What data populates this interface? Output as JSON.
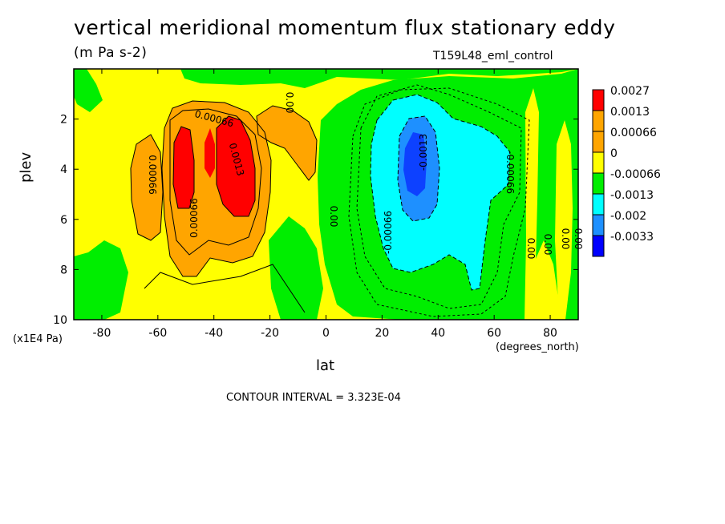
{
  "title": "vertical meridional momentum flux stationary eddy",
  "units": "(m Pa s-2)",
  "run_label": "T159L48_eml_control",
  "contour_interval": "CONTOUR INTERVAL = 3.323E-04",
  "chart_data": {
    "type": "heatmap",
    "title": "vertical meridional momentum flux stationary eddy",
    "xlabel": "lat",
    "x_unit": "(degrees_north)",
    "ylabel": "plev",
    "y_unit": "(x1E4 Pa)",
    "xlim": [
      -90,
      90
    ],
    "ylim": [
      10,
      0
    ],
    "x_ticks": [
      -80,
      -60,
      -40,
      -20,
      0,
      20,
      40,
      60,
      80
    ],
    "y_ticks": [
      2,
      4,
      6,
      8,
      10
    ],
    "legend": {
      "placement": "right",
      "levels": [
        "0.0027",
        "0.0013",
        "0.00066",
        "0",
        "-0.00066",
        "-0.0013",
        "-0.002",
        "-0.0033"
      ],
      "colors": [
        "#ff0000",
        "#ffa500",
        "#ffa500",
        "#ffff00",
        "#00ee00",
        "#00ffff",
        "#1e90ff",
        "#0000ff"
      ]
    },
    "contour_labels": [
      "0.00066",
      "0.00066",
      "0.0013",
      "0.00066",
      "0.00",
      "0.00",
      "-0.00066",
      "-0.0013",
      "-0.00066",
      "0.00",
      "0.00",
      "0.00",
      "0.00"
    ]
  }
}
